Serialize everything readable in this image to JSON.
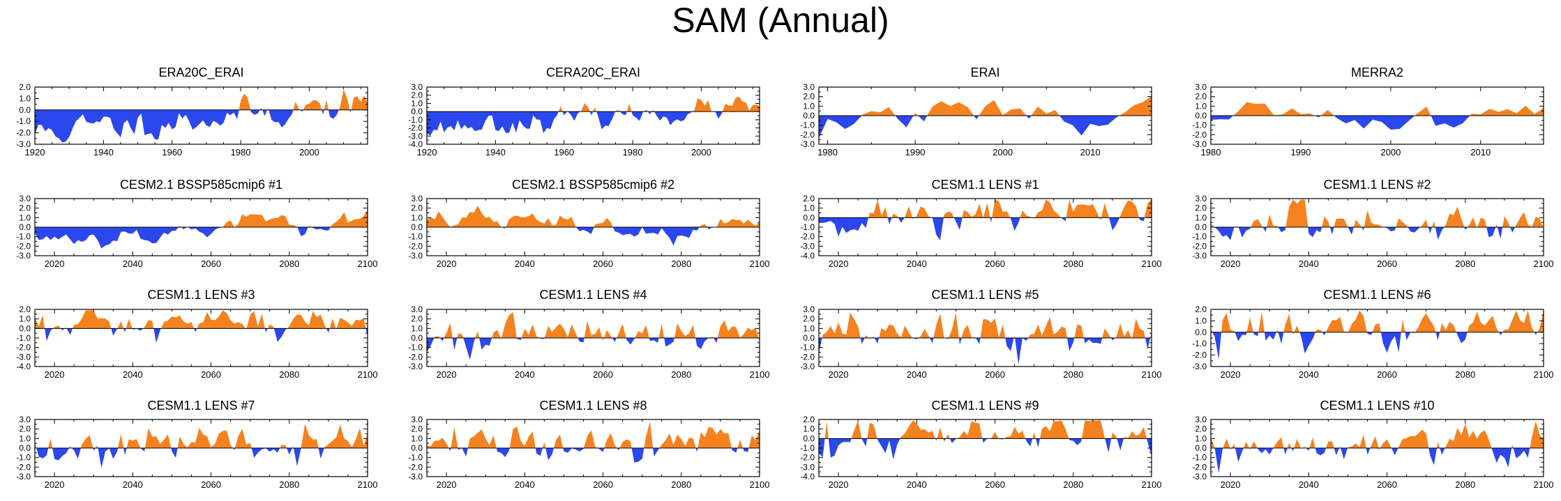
{
  "figure": {
    "title": "SAM (Annual)"
  },
  "colors": {
    "positive": "#F5821F",
    "negative": "#2B47EE",
    "axis": "#000000"
  },
  "chart_data": [
    {
      "type": "area",
      "title": "ERA20C_ERAI",
      "x_start": 1920,
      "x_end": 2017,
      "xticks": [
        1920,
        1940,
        1960,
        1980,
        2000
      ],
      "yticks": [
        2.0,
        1.0,
        0.0,
        -1.0,
        -2.0,
        -3.0
      ],
      "ylim": [
        -3.0,
        2.0
      ],
      "seed": 11,
      "pattern": "trend_up",
      "amp": 1.0
    },
    {
      "type": "area",
      "title": "CERA20C_ERAI",
      "x_start": 1920,
      "x_end": 2017,
      "xticks": [
        1920,
        1940,
        1960,
        1980,
        2000
      ],
      "yticks": [
        3.0,
        2.0,
        1.0,
        0.0,
        -1.0,
        -2.0,
        -3.0,
        -4.0
      ],
      "ylim": [
        -4.0,
        3.0
      ],
      "seed": 23,
      "pattern": "trend_up",
      "amp": 1.0
    },
    {
      "type": "area",
      "title": "ERAI",
      "x_start": 1979,
      "x_end": 2017,
      "xticks": [
        1980,
        1990,
        2000,
        2010
      ],
      "yticks": [
        3.0,
        2.0,
        1.0,
        0.0,
        -1.0,
        -2.0,
        -3.0
      ],
      "ylim": [
        -3.0,
        3.0
      ],
      "seed": 37,
      "pattern": "reanalysis",
      "amp": 1.0
    },
    {
      "type": "area",
      "title": "MERRA2",
      "x_start": 1980,
      "x_end": 2017,
      "xticks": [
        1980,
        1990,
        2000,
        2010
      ],
      "yticks": [
        3.0,
        2.0,
        1.0,
        0.0,
        -1.0,
        -2.0,
        -3.0
      ],
      "ylim": [
        -3.0,
        3.0
      ],
      "seed": 41,
      "pattern": "reanalysis",
      "amp": 1.0
    },
    {
      "type": "area",
      "title": "CESM2.1 BSSP585cmip6 #1",
      "x_start": 2015,
      "x_end": 2100,
      "xticks": [
        2020,
        2040,
        2060,
        2080,
        2100
      ],
      "yticks": [
        3.0,
        2.0,
        1.0,
        0.0,
        -1.0,
        -2.0,
        -3.0
      ],
      "ylim": [
        -3.0,
        3.0
      ],
      "seed": 53,
      "pattern": "smooth_up",
      "amp": 1.0
    },
    {
      "type": "area",
      "title": "CESM2.1 BSSP585cmip6 #2",
      "x_start": 2015,
      "x_end": 2100,
      "xticks": [
        2020,
        2040,
        2060,
        2080,
        2100
      ],
      "yticks": [
        3.0,
        2.0,
        1.0,
        0.0,
        -1.0,
        -2.0,
        -3.0
      ],
      "ylim": [
        -3.0,
        3.0
      ],
      "seed": 67,
      "pattern": "smooth_down",
      "amp": 1.0
    },
    {
      "type": "area",
      "title": "CESM1.1 LENS #1",
      "x_start": 2015,
      "x_end": 2100,
      "xticks": [
        2020,
        2040,
        2060,
        2080,
        2100
      ],
      "yticks": [
        2.0,
        1.0,
        0.0,
        -1.0,
        -2.0,
        -3.0,
        -4.0
      ],
      "ylim": [
        -4.0,
        2.0
      ],
      "seed": 71,
      "pattern": "spiky_up",
      "amp": 1.0
    },
    {
      "type": "area",
      "title": "CESM1.1 LENS #2",
      "x_start": 2015,
      "x_end": 2100,
      "xticks": [
        2020,
        2040,
        2060,
        2080,
        2100
      ],
      "yticks": [
        3.0,
        2.0,
        1.0,
        0.0,
        -1.0,
        -2.0,
        -3.0
      ],
      "ylim": [
        -3.0,
        3.0
      ],
      "seed": 83,
      "pattern": "spiky_up",
      "amp": 1.0
    },
    {
      "type": "area",
      "title": "CESM1.1 LENS #3",
      "x_start": 2015,
      "x_end": 2100,
      "xticks": [
        2020,
        2040,
        2060,
        2080,
        2100
      ],
      "yticks": [
        2.0,
        1.0,
        0.0,
        -1.0,
        -2.0,
        -3.0,
        -4.0
      ],
      "ylim": [
        -4.0,
        2.0
      ],
      "seed": 97,
      "pattern": "spiky_up",
      "amp": 1.0
    },
    {
      "type": "area",
      "title": "CESM1.1 LENS #4",
      "x_start": 2015,
      "x_end": 2100,
      "xticks": [
        2020,
        2040,
        2060,
        2080,
        2100
      ],
      "yticks": [
        3.0,
        2.0,
        1.0,
        0.0,
        -1.0,
        -2.0,
        -3.0
      ],
      "ylim": [
        -3.0,
        3.0
      ],
      "seed": 101,
      "pattern": "spiky_up",
      "amp": 1.0
    },
    {
      "type": "area",
      "title": "CESM1.1 LENS #5",
      "x_start": 2015,
      "x_end": 2100,
      "xticks": [
        2020,
        2040,
        2060,
        2080,
        2100
      ],
      "yticks": [
        3.0,
        2.0,
        1.0,
        0.0,
        -1.0,
        -2.0,
        -3.0
      ],
      "ylim": [
        -3.0,
        3.0
      ],
      "seed": 113,
      "pattern": "spiky_up",
      "amp": 1.0
    },
    {
      "type": "area",
      "title": "CESM1.1 LENS #6",
      "x_start": 2015,
      "x_end": 2100,
      "xticks": [
        2020,
        2040,
        2060,
        2080,
        2100
      ],
      "yticks": [
        2.0,
        1.0,
        0.0,
        -1.0,
        -2.0,
        -3.0
      ],
      "ylim": [
        -3.0,
        2.0
      ],
      "seed": 127,
      "pattern": "spiky_up",
      "amp": 1.0
    },
    {
      "type": "area",
      "title": "CESM1.1 LENS #7",
      "x_start": 2015,
      "x_end": 2100,
      "xticks": [
        2020,
        2040,
        2060,
        2080,
        2100
      ],
      "yticks": [
        3.0,
        2.0,
        1.0,
        0.0,
        -1.0,
        -2.0,
        -3.0
      ],
      "ylim": [
        -3.0,
        3.0
      ],
      "seed": 131,
      "pattern": "spiky_up",
      "amp": 1.0
    },
    {
      "type": "area",
      "title": "CESM1.1 LENS #8",
      "x_start": 2015,
      "x_end": 2100,
      "xticks": [
        2020,
        2040,
        2060,
        2080,
        2100
      ],
      "yticks": [
        3.0,
        2.0,
        1.0,
        0.0,
        -1.0,
        -2.0,
        -3.0
      ],
      "ylim": [
        -3.0,
        3.0
      ],
      "seed": 149,
      "pattern": "spiky_up",
      "amp": 1.0
    },
    {
      "type": "area",
      "title": "CESM1.1 LENS #9",
      "x_start": 2015,
      "x_end": 2100,
      "xticks": [
        2020,
        2040,
        2060,
        2080,
        2100
      ],
      "yticks": [
        2.0,
        1.0,
        0.0,
        -1.0,
        -2.0,
        -3.0,
        -4.0
      ],
      "ylim": [
        -4.0,
        2.0
      ],
      "seed": 157,
      "pattern": "spiky_up",
      "amp": 1.0
    },
    {
      "type": "area",
      "title": "CESM1.1 LENS #10",
      "x_start": 2015,
      "x_end": 2100,
      "xticks": [
        2020,
        2040,
        2060,
        2080,
        2100
      ],
      "yticks": [
        3.0,
        2.0,
        1.0,
        0.0,
        -1.0,
        -2.0,
        -3.0
      ],
      "ylim": [
        -3.0,
        3.0
      ],
      "seed": 163,
      "pattern": "spiky_up",
      "amp": 1.0
    }
  ]
}
